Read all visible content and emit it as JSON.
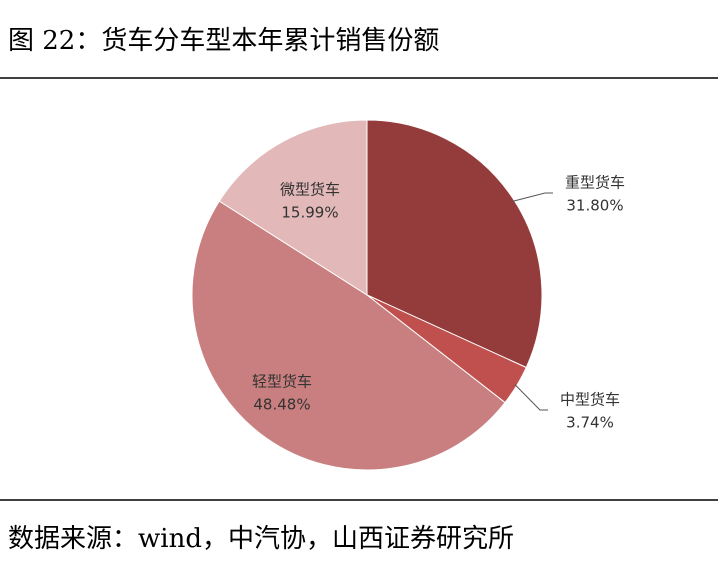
{
  "chart_data": {
    "type": "pie",
    "title": "图 22：货车分车型本年累计销售份额",
    "categories": [
      "重型货车",
      "中型货车",
      "轻型货车",
      "微型货车"
    ],
    "values": [
      31.8,
      3.74,
      48.48,
      15.99
    ],
    "value_labels": [
      "31.80%",
      "3.74%",
      "48.48%",
      "15.99%"
    ],
    "colors": [
      "#943c3c",
      "#c0504d",
      "#c97f7f",
      "#e2b8b8"
    ],
    "source": "数据来源：wind，中汽协，山西证券研究所"
  }
}
